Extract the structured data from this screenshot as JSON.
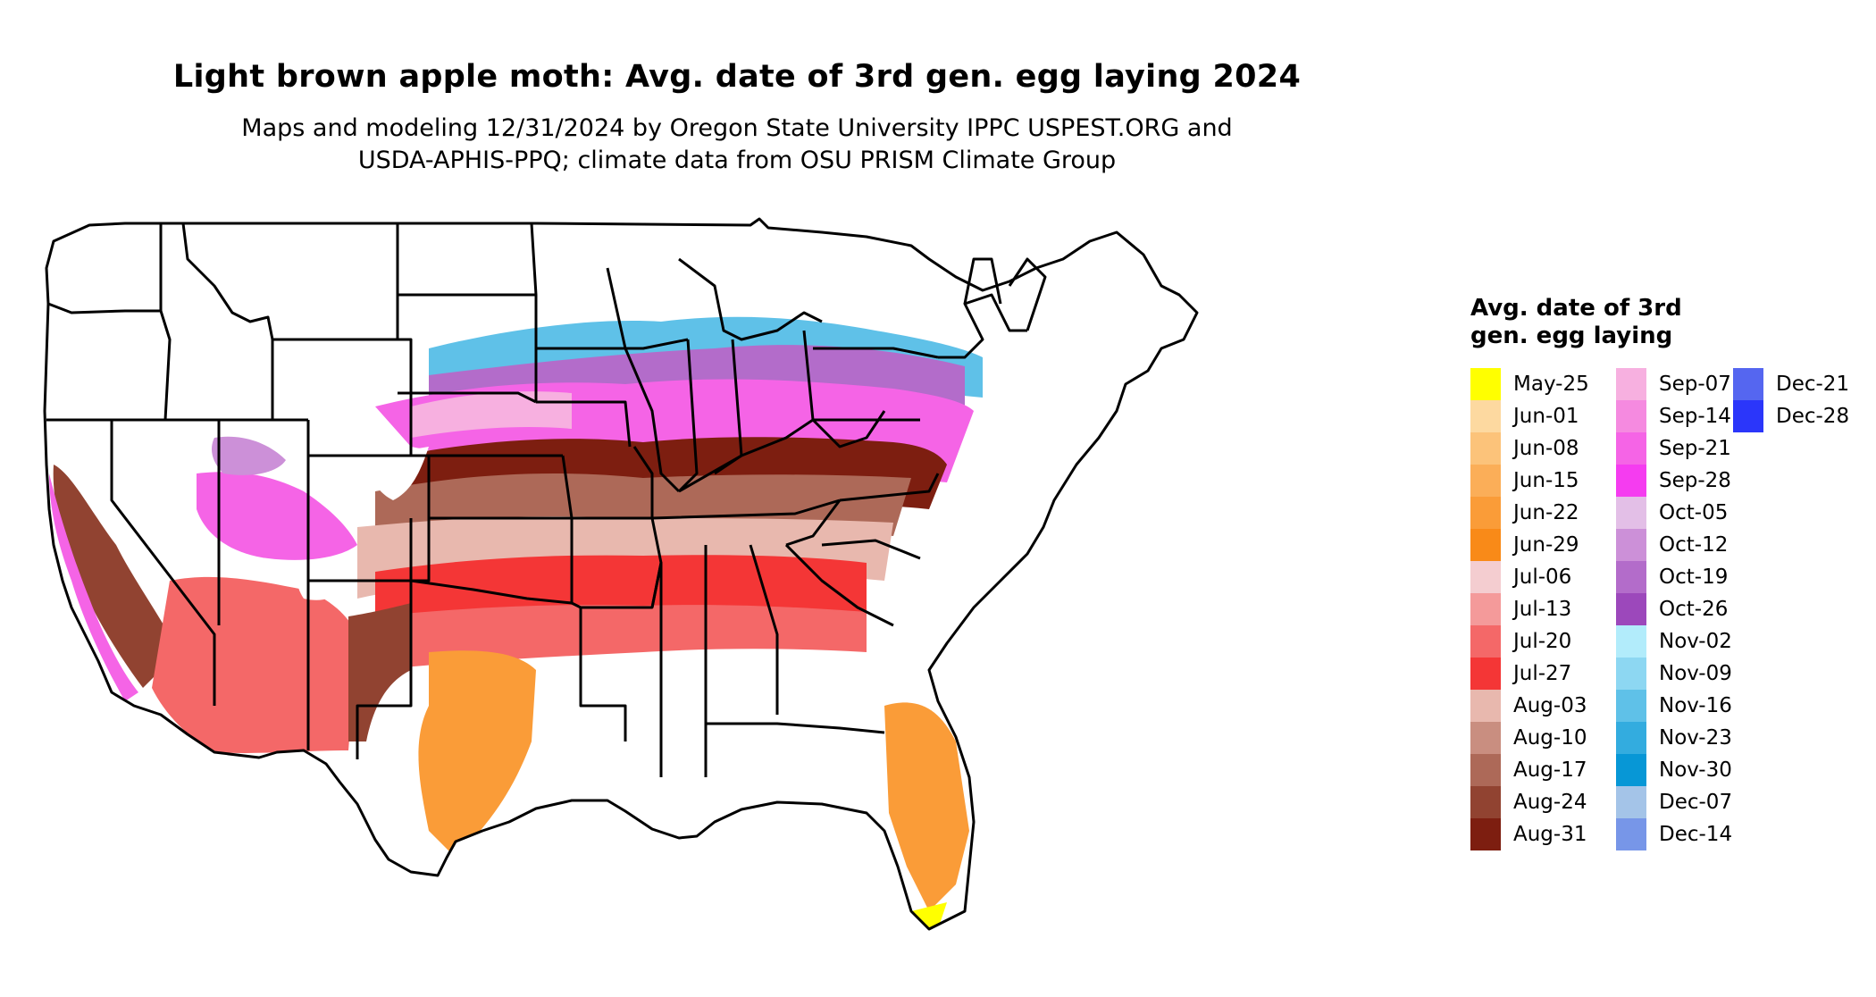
{
  "title": "Light brown apple moth: Avg. date of 3rd gen. egg laying 2024",
  "subtitle_line1": "Maps and modeling 12/31/2024 by Oregon State University IPPC USPEST.ORG and",
  "subtitle_line2": "USDA-APHIS-PPQ; climate data from OSU PRISM Climate Group",
  "legend": {
    "title": "Avg. date of 3rd gen. egg laying",
    "items": [
      {
        "label": "May-25",
        "color": "#ffff00"
      },
      {
        "label": "Jun-01",
        "color": "#fdd9a0"
      },
      {
        "label": "Jun-08",
        "color": "#fcc37a"
      },
      {
        "label": "Jun-15",
        "color": "#fbae58"
      },
      {
        "label": "Jun-22",
        "color": "#fa9c38"
      },
      {
        "label": "Jun-29",
        "color": "#f98a18"
      },
      {
        "label": "Jul-06",
        "color": "#f4cdd0"
      },
      {
        "label": "Jul-13",
        "color": "#f49a9a"
      },
      {
        "label": "Jul-20",
        "color": "#f46868"
      },
      {
        "label": "Jul-27",
        "color": "#f43636"
      },
      {
        "label": "Aug-03",
        "color": "#e8b8ae"
      },
      {
        "label": "Aug-10",
        "color": "#c98e80"
      },
      {
        "label": "Aug-17",
        "color": "#ad6958"
      },
      {
        "label": "Aug-24",
        "color": "#914331"
      },
      {
        "label": "Aug-31",
        "color": "#7d1e10"
      },
      {
        "label": "Sep-07",
        "color": "#f7b0e0"
      },
      {
        "label": "Sep-14",
        "color": "#f58ae0"
      },
      {
        "label": "Sep-21",
        "color": "#f564e6"
      },
      {
        "label": "Sep-28",
        "color": "#f53cf0"
      },
      {
        "label": "Oct-05",
        "color": "#e3bfe7"
      },
      {
        "label": "Oct-12",
        "color": "#cc90d8"
      },
      {
        "label": "Oct-19",
        "color": "#b36cca"
      },
      {
        "label": "Oct-26",
        "color": "#9c48bb"
      },
      {
        "label": "Nov-02",
        "color": "#b2ecfb"
      },
      {
        "label": "Nov-09",
        "color": "#8dd7f2"
      },
      {
        "label": "Nov-16",
        "color": "#5fc1e8"
      },
      {
        "label": "Nov-23",
        "color": "#33acdf"
      },
      {
        "label": "Nov-30",
        "color": "#0797d6"
      },
      {
        "label": "Dec-07",
        "color": "#a4c4e8"
      },
      {
        "label": "Dec-14",
        "color": "#7796e8"
      },
      {
        "label": "Dec-21",
        "color": "#5566f0"
      },
      {
        "label": "Dec-28",
        "color": "#2b36fa"
      }
    ]
  }
}
